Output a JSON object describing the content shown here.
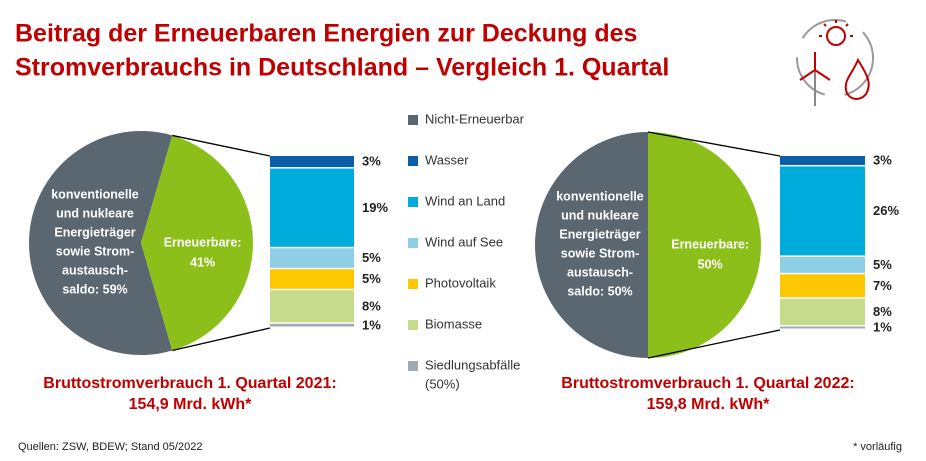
{
  "title": [
    "Beitrag der Erneuerbaren Energien zur Deckung des",
    "Stromverbrauchs in Deutschland – Vergleich 1. Quartal"
  ],
  "legend": [
    {
      "name": [
        "Nicht-Erneuerbar"
      ],
      "color": "#5b6770"
    },
    {
      "name": [
        "Wasser"
      ],
      "color": "#0b5ea8"
    },
    {
      "name": [
        "Wind an Land"
      ],
      "color": "#00acdc"
    },
    {
      "name": [
        "Wind auf See"
      ],
      "color": "#8fcfe6"
    },
    {
      "name": [
        "Photovoltaik"
      ],
      "color": "#fec800"
    },
    {
      "name": [
        "Biomasse"
      ],
      "color": "#c6dc8c"
    },
    {
      "name": [
        "Siedlungsabfälle",
        "(50%)"
      ],
      "color": "#a0abb5"
    }
  ],
  "chart_data": [
    {
      "type": "pie-of-bar",
      "pie": {
        "values": [
          59,
          41
        ],
        "colors": [
          "#5b6770",
          "#8dbf1b"
        ],
        "value_labels": [
          [
            "konventionelle",
            "und nukleare",
            "Energieträger",
            "sowie Strom-",
            "austausch-",
            "saldo: 59%"
          ],
          [
            "Erneuerbare:",
            "41%"
          ]
        ]
      },
      "bar": {
        "values": [
          3,
          19,
          5,
          5,
          8,
          1
        ],
        "value_labels": [
          "3%",
          "19%",
          "5%",
          "5%",
          "8%",
          "1%"
        ]
      },
      "caption": [
        "Bruttostromverbrauch 1. Quartal 2021:",
        "154,9 Mrd. kWh*"
      ]
    },
    {
      "type": "pie-of-bar",
      "pie": {
        "values": [
          50,
          50
        ],
        "colors": [
          "#5b6770",
          "#8dbf1b"
        ],
        "value_labels": [
          [
            "konventionelle",
            "und nukleare",
            "Energieträger",
            "sowie Strom-",
            "austausch-",
            "saldo: 50%"
          ],
          [
            "Erneuerbare:",
            "50%"
          ]
        ]
      },
      "bar": {
        "values": [
          3,
          26,
          5,
          7,
          8,
          1
        ],
        "value_labels": [
          "3%",
          "26%",
          "5%",
          "7%",
          "8%",
          "1%"
        ]
      },
      "caption": [
        "Bruttostromverbrauch 1. Quartal 2022:",
        "159,8 Mrd. kWh*"
      ]
    }
  ],
  "source": "Quellen: ZSW, BDEW; Stand 05/2022",
  "note": "* vorläufig"
}
